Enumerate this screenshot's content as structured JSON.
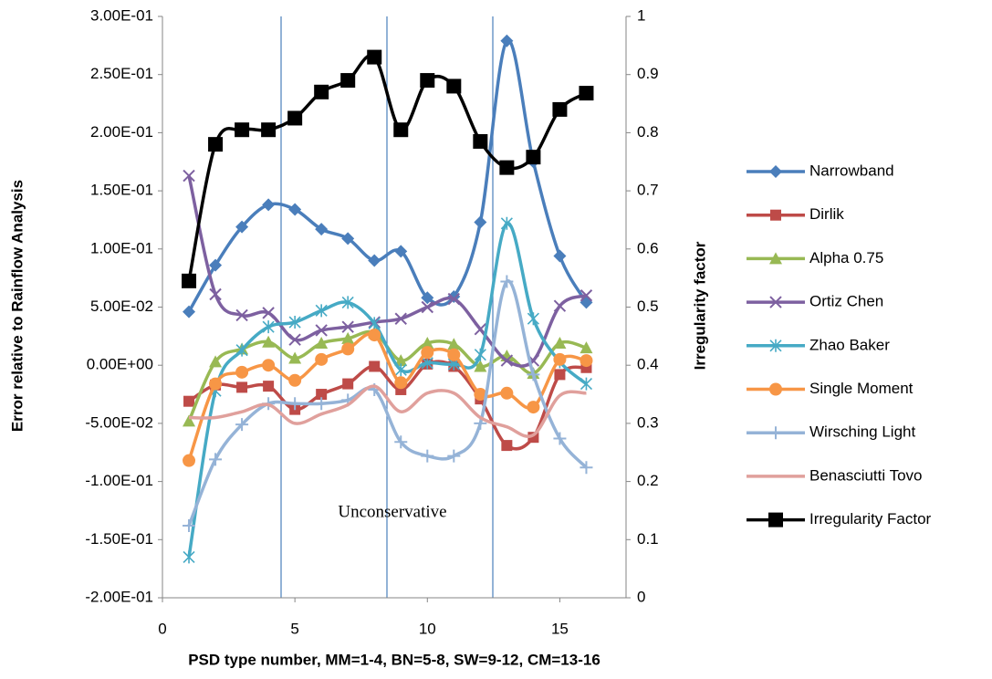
{
  "chart_data": {
    "type": "line",
    "x_label": "PSD type number, MM=1-4, BN=5-8, SW=9-12, CM=13-16",
    "y_label": "Error relative to Rainflow Analysis",
    "y2_label": "Irregularity factor",
    "annotation": "Unconservative",
    "x": [
      1,
      2,
      3,
      4,
      5,
      6,
      7,
      8,
      9,
      10,
      11,
      12,
      13,
      14,
      15,
      16
    ],
    "xlim": [
      0,
      17.5
    ],
    "xticks": [
      0,
      5,
      10,
      15
    ],
    "ylim": [
      -0.2,
      0.3
    ],
    "yticks": [
      {
        "value": -0.2,
        "label": "-2.00E-01"
      },
      {
        "value": -0.15,
        "label": "-1.50E-01"
      },
      {
        "value": -0.1,
        "label": "-1.00E-01"
      },
      {
        "value": -0.05,
        "label": "-5.00E-02"
      },
      {
        "value": 0,
        "label": "0.00E+00"
      },
      {
        "value": 0.05,
        "label": "5.00E-02"
      },
      {
        "value": 0.1,
        "label": "1.00E-01"
      },
      {
        "value": 0.15,
        "label": "1.50E-01"
      },
      {
        "value": 0.2,
        "label": "2.00E-01"
      },
      {
        "value": 0.25,
        "label": "2.50E-01"
      },
      {
        "value": 0.3,
        "label": "3.00E-01"
      }
    ],
    "y2lim": [
      0,
      1
    ],
    "y2ticks": [
      0,
      0.1,
      0.2,
      0.3,
      0.4,
      0.5,
      0.6,
      0.7,
      0.8,
      0.9,
      1
    ],
    "legend": "right",
    "series": [
      {
        "name": "Narrowband",
        "color": "#4a7ebb",
        "marker": "diamond",
        "values": [
          0.046,
          0.086,
          0.119,
          0.138,
          0.134,
          0.117,
          0.109,
          0.09,
          0.098,
          0.058,
          0.059,
          0.123,
          0.279,
          0.175,
          0.094,
          0.054
        ]
      },
      {
        "name": "Dirlik",
        "color": "#be4b48",
        "marker": "square",
        "values": [
          -0.031,
          -0.017,
          -0.019,
          -0.018,
          -0.038,
          -0.025,
          -0.016,
          -0.001,
          -0.021,
          0.001,
          -0.001,
          -0.029,
          -0.069,
          -0.062,
          -0.008,
          -0.002
        ]
      },
      {
        "name": "Alpha 0.75",
        "color": "#98b954",
        "marker": "triangle",
        "values": [
          -0.048,
          0.003,
          0.014,
          0.02,
          0.006,
          0.019,
          0.023,
          0.028,
          0.004,
          0.019,
          0.018,
          -0.001,
          0.008,
          -0.007,
          0.019,
          0.015
        ]
      },
      {
        "name": "Ortiz Chen",
        "color": "#7d60a0",
        "marker": "x",
        "values": [
          0.163,
          0.061,
          0.043,
          0.045,
          0.022,
          0.03,
          0.033,
          0.037,
          0.04,
          0.05,
          0.057,
          0.031,
          0.004,
          0.004,
          0.051,
          0.06
        ]
      },
      {
        "name": "Zhao Baker",
        "color": "#46aac5",
        "marker": "star",
        "values": [
          -0.165,
          -0.022,
          0.013,
          0.033,
          0.037,
          0.047,
          0.054,
          0.036,
          -0.004,
          0.002,
          0.001,
          0.009,
          0.122,
          0.04,
          0.003,
          -0.016
        ]
      },
      {
        "name": "Single Moment",
        "color": "#f79646",
        "marker": "circle",
        "values": [
          -0.082,
          -0.016,
          -0.006,
          0.0,
          -0.013,
          0.005,
          0.014,
          0.026,
          -0.015,
          0.011,
          0.009,
          -0.025,
          -0.024,
          -0.036,
          0.005,
          0.004
        ]
      },
      {
        "name": "Wirsching Light",
        "color": "#95b3d7",
        "marker": "plus",
        "values": [
          -0.138,
          -0.081,
          -0.051,
          -0.033,
          -0.033,
          -0.033,
          -0.03,
          -0.021,
          -0.066,
          -0.078,
          -0.078,
          -0.05,
          0.072,
          -0.008,
          -0.063,
          -0.088
        ]
      },
      {
        "name": "Benasciutti Tovo",
        "color": "#e0a09c",
        "marker": "none",
        "values": [
          -0.045,
          -0.045,
          -0.04,
          -0.034,
          -0.05,
          -0.042,
          -0.034,
          -0.018,
          -0.04,
          -0.024,
          -0.024,
          -0.045,
          -0.053,
          -0.06,
          -0.026,
          -0.024
        ]
      },
      {
        "name": "Irregularity Factor",
        "color": "#000000",
        "marker": "bigsquare",
        "axis": "y2",
        "values": [
          0.545,
          0.78,
          0.805,
          0.805,
          0.825,
          0.87,
          0.89,
          0.93,
          0.805,
          0.89,
          0.88,
          0.785,
          0.74,
          0.758,
          0.84,
          0.868
        ]
      }
    ]
  }
}
